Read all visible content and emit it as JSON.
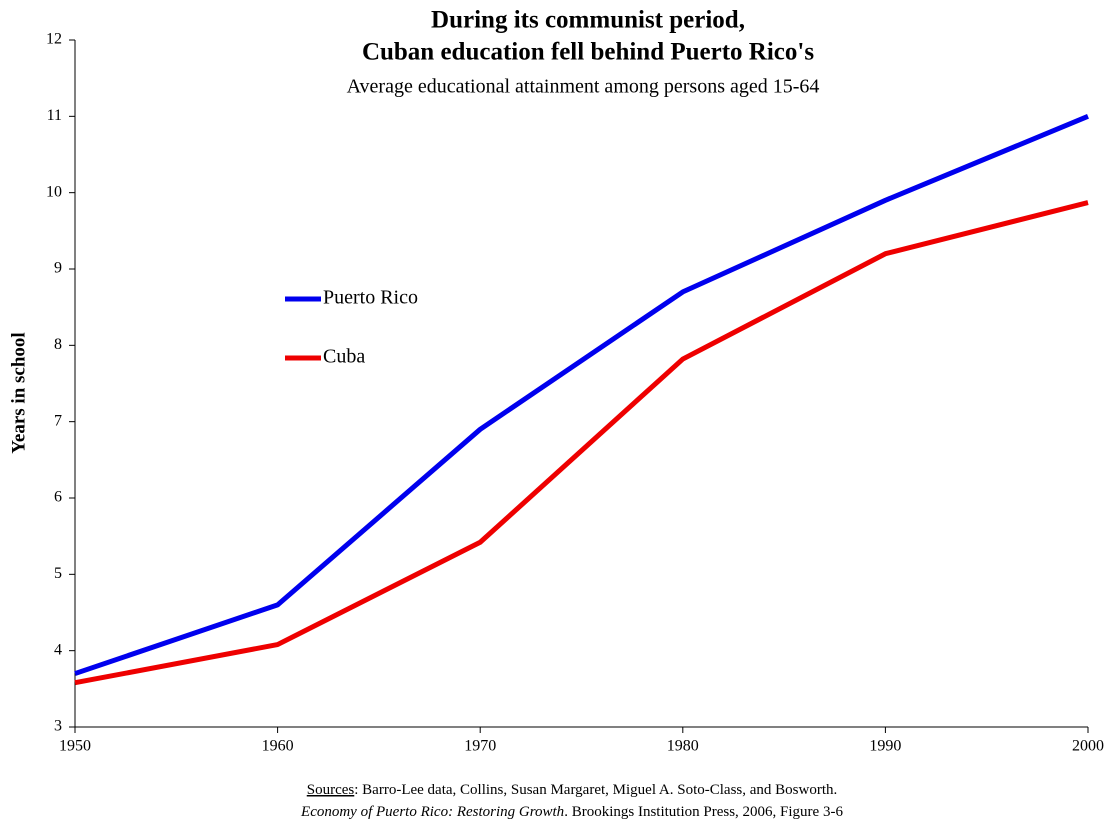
{
  "chart_data": {
    "type": "line",
    "title": [
      "During its communist  period,",
      "Cuban education fell behind Puerto Rico's"
    ],
    "subtitle": "Average educational attainment among persons aged 15-64",
    "y_label": "Years in school",
    "x": [
      1950,
      1960,
      1970,
      1980,
      1990,
      2000
    ],
    "series": [
      {
        "name": "Puerto Rico",
        "color": "#0000ee",
        "values": [
          3.7,
          4.6,
          6.9,
          8.7,
          9.9,
          11.0
        ]
      },
      {
        "name": "Cuba",
        "color": "#ee0000",
        "values": [
          3.58,
          4.08,
          5.42,
          7.82,
          9.2,
          9.87
        ]
      }
    ],
    "xlim": [
      1950,
      2000
    ],
    "xticks": [
      1950,
      1960,
      1970,
      1980,
      1990,
      2000
    ],
    "ylim": [
      3,
      12
    ],
    "yticks": [
      3,
      4,
      5,
      6,
      7,
      8,
      9,
      10,
      11,
      12
    ],
    "grid": false,
    "legend_position": "left",
    "source": {
      "label": "Sources",
      "text": ": Barro-Lee data, Collins,  Susan Margaret,  Miguel  A. Soto-Class, and Bosworth.",
      "citation_title": "Economy of Puerto Rico: Restoring Growth",
      "citation_rest": ". Brookings Institution Press, 2006,  Figure 3-6"
    }
  }
}
